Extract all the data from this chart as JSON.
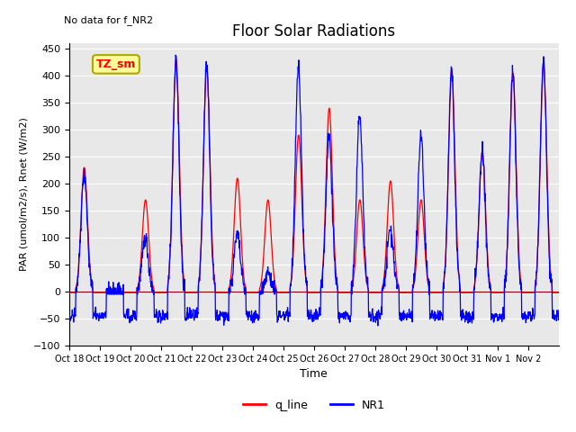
{
  "title": "Floor Solar Radiations",
  "xlabel": "Time",
  "ylabel": "PAR (umol/m2/s), Rnet (W/m2)",
  "ylim": [
    -100,
    460
  ],
  "yticks": [
    -100,
    -50,
    0,
    50,
    100,
    150,
    200,
    250,
    300,
    350,
    400,
    450
  ],
  "annotation_text": "No data for f_NR2",
  "tz_label": "TZ_sm",
  "legend_labels": [
    "q_line",
    "NR1"
  ],
  "legend_colors": [
    "red",
    "blue"
  ],
  "background_color": "#e8e8e8",
  "n_days": 16,
  "xtick_labels": [
    "Oct 18",
    "Oct 19",
    "Oct 20",
    "Oct 21",
    "Oct 22",
    "Oct 23",
    "Oct 24",
    "Oct 25",
    "Oct 26",
    "Oct 27",
    "Oct 28",
    "Oct 29",
    "Oct 30",
    "Oct 31",
    "Nov 1",
    "Nov 2"
  ],
  "q_line_peaks": [
    230,
    0,
    170,
    430,
    415,
    210,
    170,
    290,
    340,
    170,
    205,
    170,
    410,
    260,
    405,
    420
  ],
  "nr1_peaks": [
    220,
    0,
    100,
    425,
    420,
    105,
    35,
    415,
    290,
    330,
    115,
    290,
    410,
    260,
    405,
    425
  ],
  "nr1_night_min": -45,
  "q_night_val": -2
}
